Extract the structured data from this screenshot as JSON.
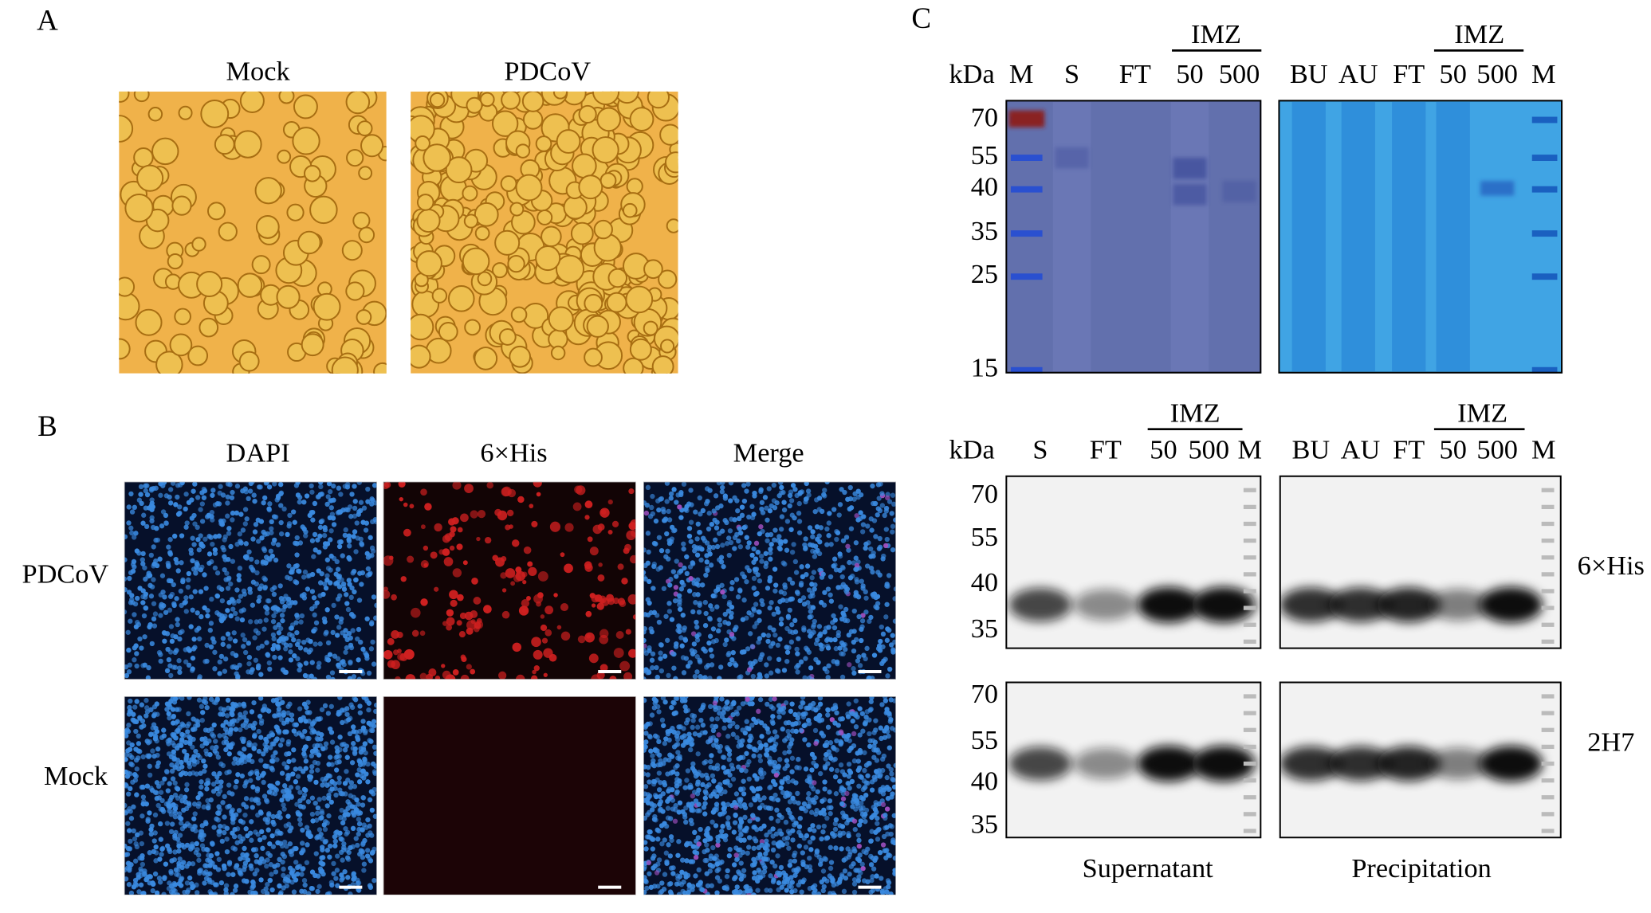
{
  "panel_a": {
    "label": "A",
    "columns": [
      "Mock",
      "PDCoV"
    ]
  },
  "panel_b": {
    "label": "B",
    "columns": [
      "DAPI",
      "6×His",
      "Merge"
    ],
    "rows": [
      "PDCoV",
      "Mock"
    ]
  },
  "panel_c": {
    "label": "C",
    "coomassie": {
      "unit": "kDa",
      "lanes": [
        "M",
        "S",
        "FT",
        "50",
        "500",
        "BU",
        "AU",
        "FT",
        "50",
        "500",
        "M"
      ],
      "imz_labels": [
        "IMZ",
        "IMZ"
      ],
      "markers": [
        "70",
        "55",
        "40",
        "35",
        "25",
        "15"
      ]
    },
    "western": {
      "unit": "kDa",
      "lanes": [
        "S",
        "FT",
        "50",
        "500",
        "M",
        "BU",
        "AU",
        "FT",
        "50",
        "500",
        "M"
      ],
      "imz_labels": [
        "IMZ",
        "IMZ"
      ],
      "blots": [
        {
          "antibody": "6×His",
          "markers": [
            "70",
            "55",
            "40",
            "35"
          ]
        },
        {
          "antibody": "2H7",
          "markers": [
            "70",
            "55",
            "40",
            "35"
          ]
        }
      ],
      "fractions": [
        "Supernatant",
        "Precipitation"
      ]
    }
  }
}
